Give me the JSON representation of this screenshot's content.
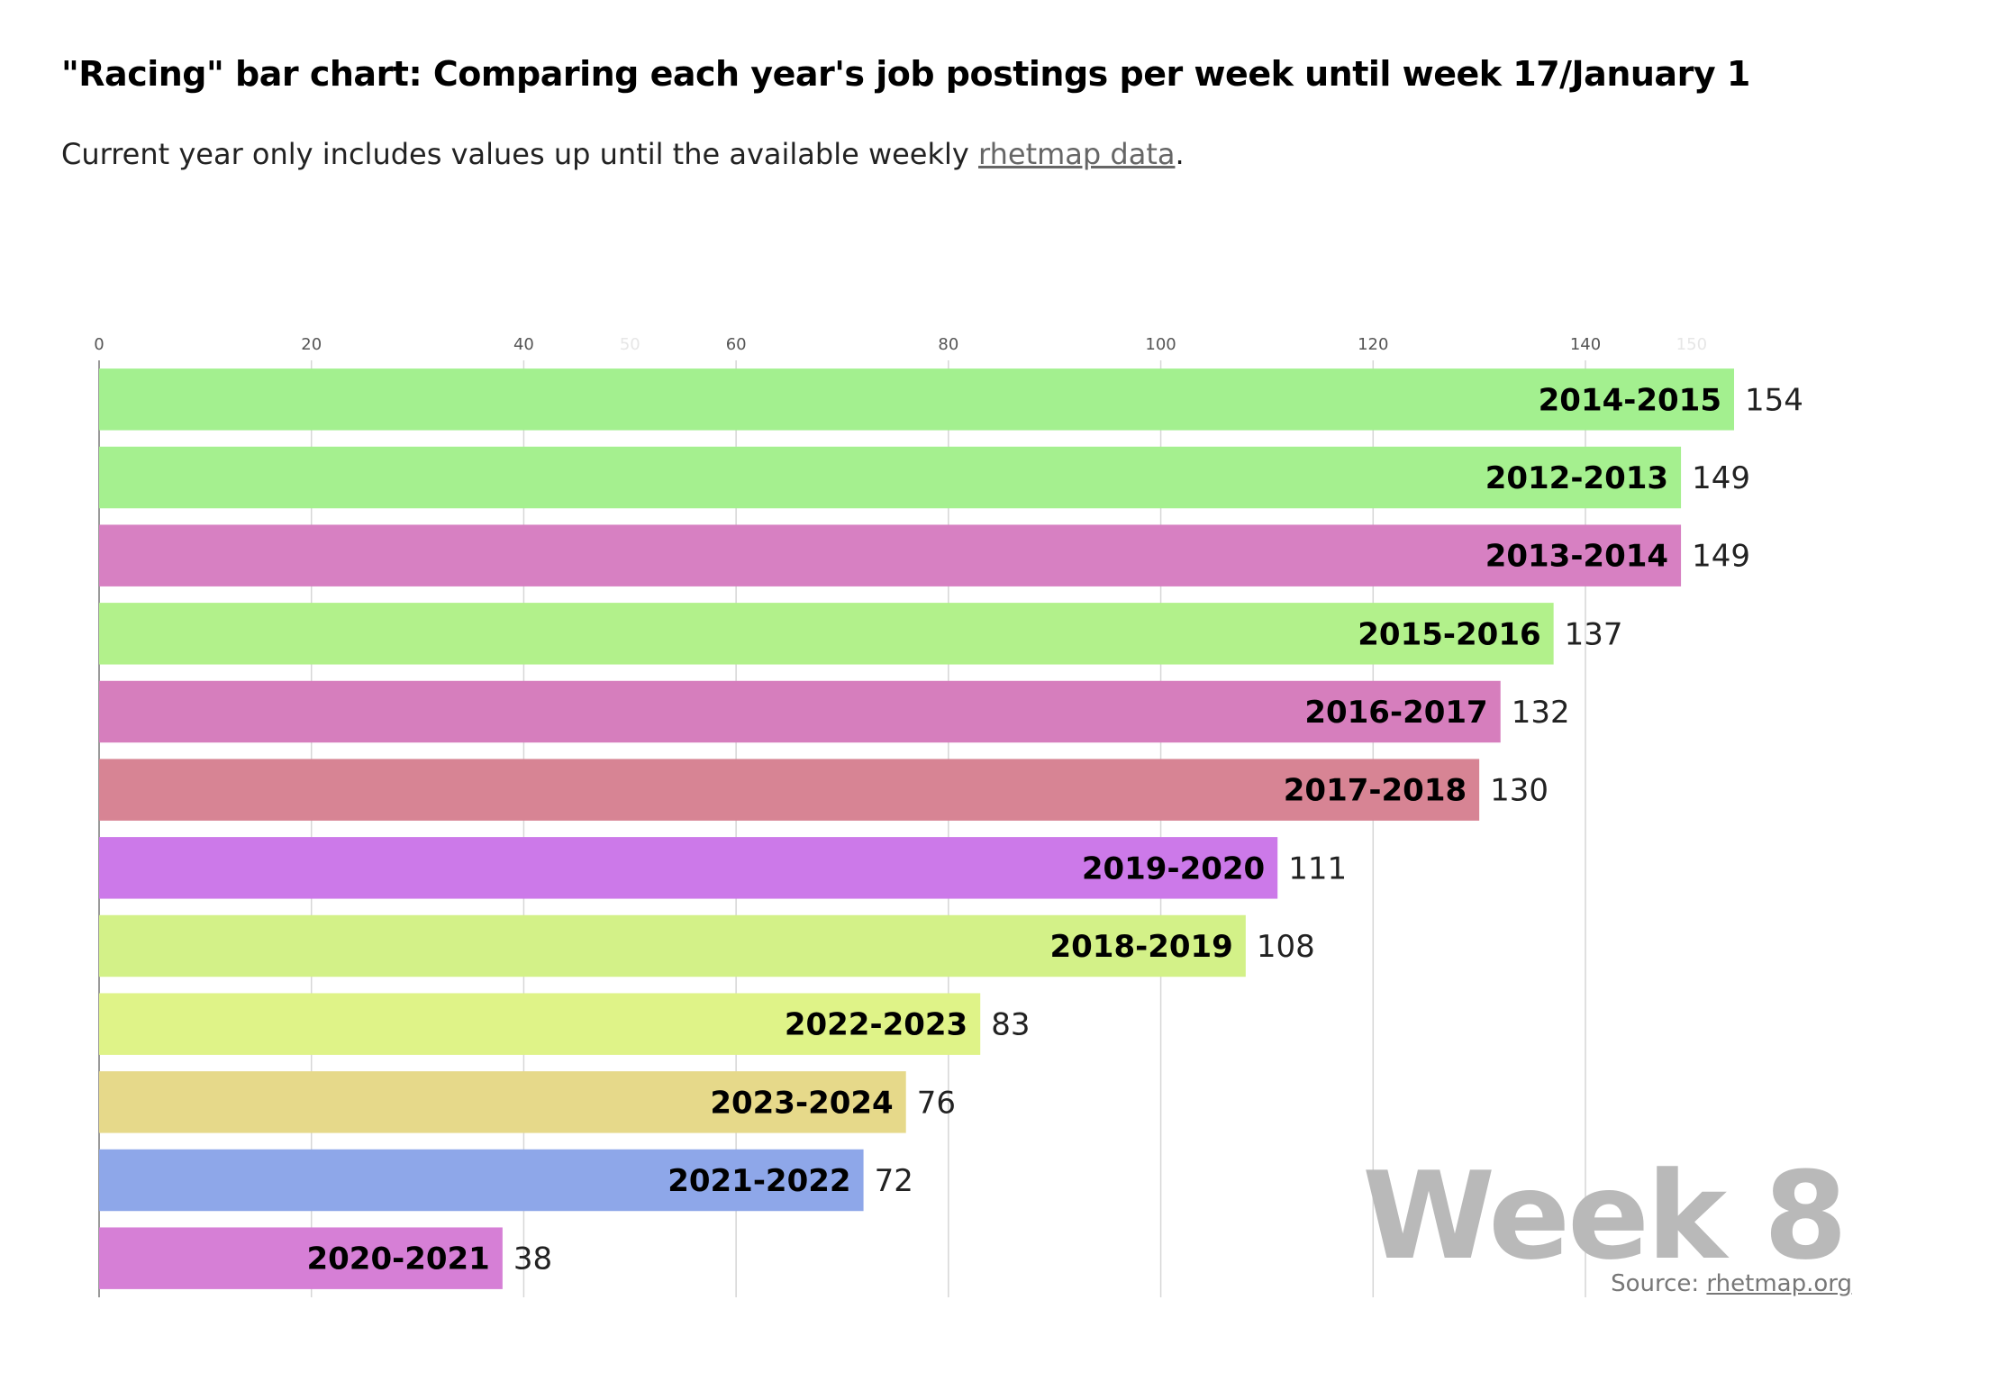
{
  "title": "\"Racing\" bar chart: Comparing each year's job postings per week until week 17/January 1",
  "subtitle": {
    "text_before": "Current year only includes values up until the available weekly ",
    "link_text": "rhetmap data",
    "text_after": "."
  },
  "source": {
    "prefix": "Source: ",
    "link_text": "rhetmap.org"
  },
  "chart_data": {
    "type": "bar",
    "orientation": "horizontal",
    "week_label": "Week 8",
    "xlim": [
      0,
      154
    ],
    "x_ticks": [
      0,
      20,
      40,
      50,
      60,
      80,
      100,
      120,
      140,
      150
    ],
    "x_tick_labels": [
      "0",
      "20",
      "40",
      "50",
      "60",
      "80",
      "100",
      "120",
      "140",
      "150"
    ],
    "faint_ticks": [
      50,
      150
    ],
    "grid": true,
    "categories": [
      "2014-2015",
      "2012-2013",
      "2013-2014",
      "2015-2016",
      "2016-2017",
      "2017-2018",
      "2019-2020",
      "2018-2019",
      "2022-2023",
      "2023-2024",
      "2021-2022",
      "2020-2021"
    ],
    "values": [
      154,
      149,
      149,
      137,
      132,
      130,
      111,
      108,
      83,
      76,
      72,
      38
    ],
    "colors": [
      "#a3f08f",
      "#a5f08f",
      "#d780c2",
      "#b2f18b",
      "#d67ebd",
      "#d78494",
      "#cc79e9",
      "#d3f188",
      "#dff388",
      "#e6d98a",
      "#8ea7e9",
      "#d67fd6"
    ]
  }
}
